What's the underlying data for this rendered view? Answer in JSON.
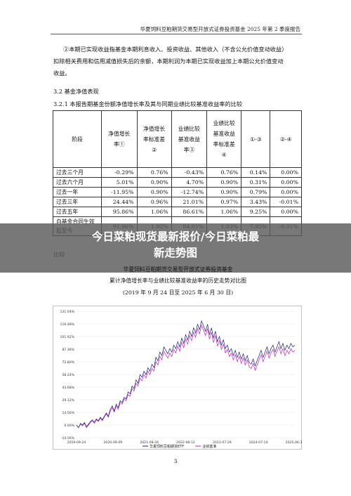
{
  "header": {
    "title": "华夏饲料豆粕期货交易型开放式证券投资基金 2025 年第 2 季度报告"
  },
  "body": {
    "para_line1": "②本期已实现收益指基金本期利息收入、投资收益、其他收入（不含公允价值变动收益）",
    "para_line2": "扣除相关费用和信用减值损失后的余额，本期利润为本期已实现收益加上本期公允价值变动",
    "para_line3": "收益。",
    "section_32": "3.2  基金净值表现",
    "section_321": "3.2.1  本报告期基金份额净值增长率及其与同期业绩比较基准收益率的比较",
    "tail_text": "比较"
  },
  "table": {
    "headers": [
      [
        "阶段"
      ],
      [
        "净值增长",
        "率①"
      ],
      [
        "净值增长",
        "率标准差",
        "②"
      ],
      [
        "业绩比较",
        "基准收益",
        "率③"
      ],
      [
        "业绩比较",
        "基准收益",
        "率标准差",
        "④"
      ],
      [
        "①-③"
      ],
      [
        "②-④"
      ]
    ],
    "rows": [
      [
        "过去三个月",
        "-0.29%",
        "0.76%",
        "-0.43%",
        "0.76%",
        "0.14%",
        "0.00%"
      ],
      [
        "过去六个月",
        "5.01%",
        "0.90%",
        "4.70%",
        "0.90%",
        "0.31%",
        "0.00%"
      ],
      [
        "过去一年",
        "-11.95%",
        "0.90%",
        "-12.74%",
        "0.90%",
        "0.79%",
        "0.00%"
      ],
      [
        "过去三年",
        "24.44%",
        "0.96%",
        "21.01%",
        "0.97%",
        "3.43%",
        "-0.01%"
      ],
      [
        "过去五年",
        "95.86%",
        "1.06%",
        "86.61%",
        "1.06%",
        "9.25%",
        "0.00%"
      ],
      [
        "自基金合同生效起至今",
        "91.96%",
        "1.02%",
        "84.01%",
        "1.03%",
        "7.95%",
        "-0.01%"
      ]
    ]
  },
  "banner": {
    "line1": "今日菜粕现货最新报价/今日菜粕最",
    "line2": "新走势图"
  },
  "chart_titles": {
    "line1": "华夏饲料豆粕期货交易型开放式证券投资基金",
    "line2": "累计净值增长率与业绩比较基准收益率的历史走势对比图",
    "line3": "(2019 年 9 月 24 日至 2025 年 6 月 30 日)"
  },
  "chart_data": {
    "type": "line",
    "yticks": [
      "131.04%",
      "116.48%",
      "101.92%",
      "87.36%",
      "72.80%",
      "58.24%",
      "43.68%",
      "29.12%",
      "14.56%",
      "0.00%",
      "-14.56%"
    ],
    "xticks": [
      "2019-09-24",
      "2020-09-09",
      "2021-08-26",
      "2022-08-12",
      "2023-07-29",
      "2024-07-14",
      "2025-06-30"
    ],
    "ylim": [
      -14.56,
      131.04
    ],
    "series": [
      {
        "name": "华夏饲料豆粕期货ETF",
        "color": "#1a1a7a",
        "values": [
          0,
          -3,
          2,
          0,
          3,
          -2,
          1,
          4,
          6,
          3,
          7,
          5,
          9,
          6,
          10,
          14,
          10,
          18,
          22,
          16,
          24,
          20,
          28,
          26,
          32,
          30,
          38,
          36,
          45,
          42,
          52,
          48,
          58,
          55,
          62,
          58,
          66,
          62,
          70,
          66,
          78,
          74,
          84,
          80,
          90,
          86,
          82,
          88,
          84,
          92,
          88,
          96,
          90,
          100,
          94,
          104,
          98,
          108,
          102,
          112,
          106,
          116,
          110,
          120,
          114,
          108,
          116,
          104,
          112,
          100,
          108,
          96,
          102,
          92,
          98,
          88,
          92,
          84,
          88,
          80,
          86,
          78,
          84,
          76,
          82,
          74,
          80,
          72,
          70,
          76,
          68,
          74,
          80,
          86,
          78,
          84,
          90,
          82,
          88,
          92,
          84,
          90,
          96,
          88,
          94,
          86,
          92,
          88,
          94,
          90,
          92
        ]
      },
      {
        "name": "业绩基准",
        "color": "#c020c0",
        "values": [
          0,
          -3,
          1,
          -1,
          2,
          -3,
          0,
          3,
          5,
          2,
          6,
          4,
          8,
          5,
          9,
          13,
          9,
          16,
          20,
          15,
          22,
          18,
          26,
          24,
          30,
          28,
          35,
          33,
          42,
          39,
          48,
          45,
          54,
          51,
          58,
          54,
          62,
          58,
          65,
          62,
          73,
          69,
          79,
          75,
          85,
          81,
          77,
          83,
          79,
          87,
          83,
          91,
          85,
          95,
          89,
          99,
          93,
          103,
          97,
          107,
          101,
          111,
          105,
          115,
          109,
          103,
          111,
          99,
          107,
          95,
          103,
          91,
          97,
          87,
          93,
          83,
          87,
          79,
          83,
          75,
          81,
          73,
          79,
          71,
          77,
          69,
          75,
          67,
          65,
          71,
          63,
          69,
          75,
          81,
          73,
          79,
          85,
          77,
          83,
          87,
          79,
          85,
          90,
          82,
          88,
          80,
          86,
          82,
          88,
          84,
          86
        ]
      }
    ]
  },
  "page_number": "3"
}
